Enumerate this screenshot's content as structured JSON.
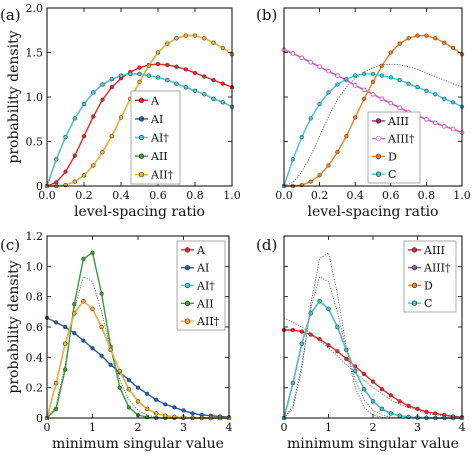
{
  "chart_data": [
    {
      "panel_label": "(a)",
      "type": "line",
      "xlabel": "level-spacing ratio",
      "ylabel": "probability density",
      "xlim": [
        0,
        1
      ],
      "ylim": [
        0,
        2
      ],
      "xticks": [
        "0.0",
        "0.2",
        "0.4",
        "0.6",
        "0.8",
        "1.0"
      ],
      "yticks": [
        "0",
        "0.5",
        "1.0",
        "1.5",
        "2.0"
      ],
      "grid": false,
      "legend_position": "inside-right",
      "x": [
        0,
        0.05,
        0.1,
        0.15,
        0.2,
        0.25,
        0.3,
        0.35,
        0.4,
        0.45,
        0.5,
        0.55,
        0.6,
        0.65,
        0.7,
        0.75,
        0.8,
        0.85,
        0.9,
        0.95,
        1.0
      ],
      "series": [
        {
          "name": "A",
          "color": "#e8262b",
          "marker": "circle",
          "values": [
            0,
            0.04,
            0.16,
            0.34,
            0.56,
            0.78,
            0.97,
            1.11,
            1.21,
            1.28,
            1.33,
            1.36,
            1.37,
            1.36,
            1.34,
            1.31,
            1.27,
            1.23,
            1.19,
            1.15,
            1.11
          ]
        },
        {
          "name": "AI",
          "color": "#2b5fa8",
          "marker": "circle",
          "values": [
            0,
            0.3,
            0.55,
            0.76,
            0.92,
            1.05,
            1.14,
            1.2,
            1.24,
            1.26,
            1.26,
            1.24,
            1.22,
            1.19,
            1.15,
            1.11,
            1.07,
            1.03,
            0.98,
            0.94,
            0.89
          ]
        },
        {
          "name": "AI†",
          "color": "#56c9ca",
          "marker": "circle",
          "values": [
            0,
            0.3,
            0.55,
            0.76,
            0.92,
            1.05,
            1.14,
            1.2,
            1.24,
            1.26,
            1.26,
            1.24,
            1.22,
            1.19,
            1.15,
            1.11,
            1.07,
            1.03,
            0.98,
            0.94,
            0.89
          ]
        },
        {
          "name": "AII",
          "color": "#3d9a3f",
          "marker": "circle",
          "values": [
            0,
            0.0,
            0.01,
            0.05,
            0.12,
            0.23,
            0.38,
            0.56,
            0.77,
            0.98,
            1.17,
            1.35,
            1.5,
            1.6,
            1.66,
            1.69,
            1.69,
            1.66,
            1.61,
            1.55,
            1.48
          ]
        },
        {
          "name": "AII†",
          "color": "#f2b233",
          "marker": "circle",
          "values": [
            0,
            0.0,
            0.01,
            0.05,
            0.12,
            0.23,
            0.38,
            0.56,
            0.77,
            0.98,
            1.17,
            1.35,
            1.5,
            1.6,
            1.66,
            1.69,
            1.69,
            1.66,
            1.61,
            1.55,
            1.48
          ]
        }
      ]
    },
    {
      "panel_label": "(b)",
      "type": "line",
      "xlabel": "level-spacing ratio",
      "ylabel": "",
      "xlim": [
        0,
        1
      ],
      "ylim": [
        0,
        2
      ],
      "xticks": [
        "0.0",
        "0.2",
        "0.4",
        "0.6",
        "0.8",
        "1.0"
      ],
      "yticks": [],
      "grid": false,
      "legend_position": "bottom-right",
      "x": [
        0,
        0.05,
        0.1,
        0.15,
        0.2,
        0.25,
        0.3,
        0.35,
        0.4,
        0.45,
        0.5,
        0.55,
        0.6,
        0.65,
        0.7,
        0.75,
        0.8,
        0.85,
        0.9,
        0.95,
        1.0
      ],
      "series": [
        {
          "name": "AIII",
          "color": "#b91e6e",
          "marker": "circle",
          "values": [
            1.53,
            1.49,
            1.44,
            1.39,
            1.34,
            1.29,
            1.24,
            1.19,
            1.13,
            1.08,
            1.03,
            0.98,
            0.93,
            0.88,
            0.83,
            0.79,
            0.75,
            0.71,
            0.67,
            0.64,
            0.6
          ]
        },
        {
          "name": "AIII†",
          "color": "#d25ac4",
          "marker": "circle-open",
          "values": [
            1.53,
            1.49,
            1.44,
            1.39,
            1.34,
            1.29,
            1.24,
            1.19,
            1.13,
            1.08,
            1.03,
            0.98,
            0.93,
            0.88,
            0.83,
            0.79,
            0.75,
            0.71,
            0.67,
            0.64,
            0.6
          ]
        },
        {
          "name": "D",
          "color": "#f07f22",
          "marker": "circle",
          "values": [
            0,
            0.0,
            0.01,
            0.05,
            0.12,
            0.23,
            0.38,
            0.56,
            0.77,
            0.98,
            1.17,
            1.35,
            1.5,
            1.6,
            1.66,
            1.69,
            1.69,
            1.66,
            1.61,
            1.55,
            1.48
          ]
        },
        {
          "name": "C",
          "color": "#3ec6da",
          "marker": "circle",
          "values": [
            0,
            0.3,
            0.55,
            0.76,
            0.92,
            1.05,
            1.14,
            1.2,
            1.24,
            1.26,
            1.26,
            1.24,
            1.22,
            1.19,
            1.15,
            1.11,
            1.07,
            1.03,
            0.98,
            0.94,
            0.89
          ]
        }
      ],
      "reference_curves": [
        {
          "style": "thin gray dotted",
          "values": [
            0,
            0.04,
            0.16,
            0.34,
            0.56,
            0.78,
            0.97,
            1.11,
            1.21,
            1.28,
            1.33,
            1.36,
            1.37,
            1.36,
            1.34,
            1.31,
            1.27,
            1.23,
            1.19,
            1.15,
            1.11
          ]
        }
      ]
    },
    {
      "panel_label": "(c)",
      "type": "line",
      "xlabel": "minimum singular value",
      "ylabel": "probability density",
      "xlim": [
        0,
        4
      ],
      "ylim": [
        0,
        1.2
      ],
      "xticks": [
        "0",
        "1",
        "2",
        "3",
        "4"
      ],
      "yticks": [
        "0",
        "0.2",
        "0.4",
        "0.6",
        "0.8",
        "1.0",
        "1.2"
      ],
      "grid": false,
      "legend_position": "top-right",
      "x": [
        0,
        0.2,
        0.4,
        0.6,
        0.8,
        1.0,
        1.2,
        1.4,
        1.6,
        1.8,
        2.0,
        2.2,
        2.4,
        2.6,
        2.8,
        3.0,
        3.2,
        3.4,
        3.6,
        3.8,
        4.0
      ],
      "series": [
        {
          "name": "A",
          "color": "#e8262b",
          "marker": "circle",
          "values": [
            0,
            0.23,
            0.49,
            0.69,
            0.77,
            0.72,
            0.6,
            0.45,
            0.31,
            0.19,
            0.11,
            0.06,
            0.03,
            0.015,
            0.007,
            0.003,
            0.001,
            0,
            0,
            0,
            0
          ]
        },
        {
          "name": "AI",
          "color": "#2b5fa8",
          "marker": "circle",
          "values": [
            0.66,
            0.63,
            0.6,
            0.56,
            0.51,
            0.46,
            0.41,
            0.35,
            0.3,
            0.25,
            0.2,
            0.16,
            0.12,
            0.09,
            0.07,
            0.05,
            0.03,
            0.02,
            0.015,
            0.01,
            0.005
          ]
        },
        {
          "name": "AI†",
          "color": "#56c9ca",
          "marker": "circle",
          "values": [
            0,
            0.23,
            0.49,
            0.69,
            0.77,
            0.72,
            0.6,
            0.45,
            0.31,
            0.19,
            0.11,
            0.06,
            0.03,
            0.015,
            0.007,
            0.003,
            0.001,
            0,
            0,
            0,
            0
          ]
        },
        {
          "name": "AII",
          "color": "#3d9a3f",
          "marker": "circle",
          "values": [
            0,
            0.06,
            0.32,
            0.75,
            1.05,
            1.09,
            0.82,
            0.47,
            0.2,
            0.07,
            0.02,
            0.005,
            0,
            0,
            0,
            0,
            0,
            0,
            0,
            0,
            0
          ]
        },
        {
          "name": "AII†",
          "color": "#f2b233",
          "marker": "circle",
          "values": [
            0,
            0.23,
            0.49,
            0.69,
            0.77,
            0.72,
            0.6,
            0.45,
            0.31,
            0.19,
            0.11,
            0.06,
            0.03,
            0.015,
            0.007,
            0.003,
            0.001,
            0,
            0,
            0,
            0
          ]
        }
      ],
      "reference_curves": [
        {
          "style": "thin gray dotted",
          "values": [
            0,
            0.08,
            0.35,
            0.72,
            0.93,
            0.9,
            0.7,
            0.45,
            0.25,
            0.12,
            0.05,
            0.02,
            0.005,
            0,
            0,
            0,
            0,
            0,
            0,
            0,
            0
          ]
        }
      ]
    },
    {
      "panel_label": "(d)",
      "type": "line",
      "xlabel": "minimum singular value",
      "ylabel": "",
      "xlim": [
        0,
        4
      ],
      "ylim": [
        0,
        1.2
      ],
      "xticks": [
        "0",
        "1",
        "2",
        "3",
        "4"
      ],
      "yticks": [],
      "grid": false,
      "legend_position": "top-right",
      "x": [
        0,
        0.2,
        0.4,
        0.6,
        0.8,
        1.0,
        1.2,
        1.4,
        1.6,
        1.8,
        2.0,
        2.2,
        2.4,
        2.6,
        2.8,
        3.0,
        3.2,
        3.4,
        3.6,
        3.8,
        4.0
      ],
      "series": [
        {
          "name": "AIII",
          "color": "#e8262b",
          "marker": "circle",
          "values": [
            0.58,
            0.58,
            0.57,
            0.55,
            0.52,
            0.48,
            0.44,
            0.39,
            0.34,
            0.29,
            0.24,
            0.19,
            0.15,
            0.11,
            0.08,
            0.06,
            0.04,
            0.03,
            0.02,
            0.01,
            0.005
          ]
        },
        {
          "name": "AIII†",
          "color": "#a04ec0",
          "marker": "circle",
          "values": [
            0,
            0.23,
            0.49,
            0.69,
            0.77,
            0.72,
            0.6,
            0.45,
            0.31,
            0.19,
            0.11,
            0.06,
            0.03,
            0.015,
            0.007,
            0.003,
            0.001,
            0,
            0,
            0,
            0
          ]
        },
        {
          "name": "D",
          "color": "#f07f22",
          "marker": "circle",
          "values": [
            0,
            0.23,
            0.49,
            0.69,
            0.77,
            0.72,
            0.6,
            0.45,
            0.31,
            0.19,
            0.11,
            0.06,
            0.03,
            0.015,
            0.007,
            0.003,
            0.001,
            0,
            0,
            0,
            0
          ]
        },
        {
          "name": "C",
          "color": "#3ec6da",
          "marker": "circle",
          "values": [
            0,
            0.23,
            0.49,
            0.69,
            0.77,
            0.72,
            0.6,
            0.45,
            0.31,
            0.19,
            0.11,
            0.06,
            0.03,
            0.015,
            0.007,
            0.003,
            0.001,
            0,
            0,
            0,
            0
          ]
        }
      ],
      "reference_curves": [
        {
          "style": "thin gray dotted",
          "values": [
            0,
            0.06,
            0.32,
            0.75,
            1.05,
            1.09,
            0.82,
            0.47,
            0.2,
            0.07,
            0.02,
            0.005,
            0,
            0,
            0,
            0,
            0,
            0,
            0,
            0,
            0
          ]
        },
        {
          "style": "thin gray dotted",
          "values": [
            0,
            0.08,
            0.35,
            0.72,
            0.93,
            0.9,
            0.7,
            0.45,
            0.25,
            0.12,
            0.05,
            0.02,
            0.005,
            0,
            0,
            0,
            0,
            0,
            0,
            0,
            0
          ]
        },
        {
          "style": "thin gray dotted",
          "values": [
            0.66,
            0.63,
            0.6,
            0.56,
            0.51,
            0.46,
            0.41,
            0.35,
            0.3,
            0.25,
            0.2,
            0.16,
            0.12,
            0.09,
            0.07,
            0.05,
            0.03,
            0.02,
            0.015,
            0.01,
            0.005
          ]
        }
      ]
    }
  ]
}
